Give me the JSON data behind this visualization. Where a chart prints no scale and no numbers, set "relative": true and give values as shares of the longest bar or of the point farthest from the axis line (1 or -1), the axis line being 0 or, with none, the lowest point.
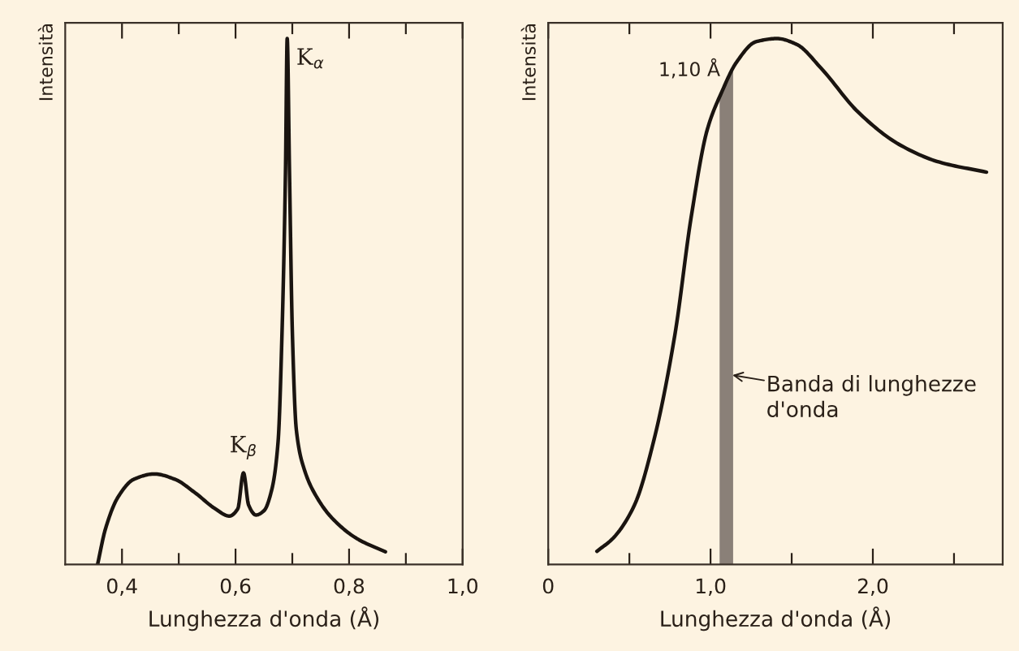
{
  "chart_data": [
    {
      "type": "line",
      "relative": true,
      "ylabel": "Intensità",
      "xlabel": "Lunghezza d'onda (Å)",
      "xlim": [
        0.3,
        1.0
      ],
      "xticks": [
        {
          "value": 0.4,
          "label": "0,4"
        },
        {
          "value": 0.5,
          "label": null
        },
        {
          "value": 0.6,
          "label": "0,6"
        },
        {
          "value": 0.7,
          "label": null
        },
        {
          "value": 0.8,
          "label": "0,8"
        },
        {
          "value": 0.9,
          "label": null
        },
        {
          "value": 1.0,
          "label": "1,0"
        }
      ],
      "tick_labels": "x",
      "grid": false,
      "legend": false,
      "marker": "none",
      "line_style": "solid",
      "series": [
        {
          "color": "#1a1410",
          "x": [
            0.357,
            0.371,
            0.393,
            0.421,
            0.457,
            0.493,
            0.529,
            0.564,
            0.589,
            0.604,
            0.614,
            0.623,
            0.636,
            0.65,
            0.664,
            0.675,
            0.682,
            0.688,
            0.691,
            0.695,
            0.7,
            0.707,
            0.721,
            0.743,
            0.771,
            0.814,
            0.864
          ],
          "values": [
            0,
            0.068,
            0.128,
            0.162,
            0.172,
            0.162,
            0.136,
            0.106,
            0.092,
            0.106,
            0.174,
            0.113,
            0.094,
            0.102,
            0.143,
            0.234,
            0.445,
            0.747,
            1.0,
            0.747,
            0.445,
            0.257,
            0.181,
            0.128,
            0.087,
            0.049,
            0.024
          ]
        }
      ],
      "annotations": [
        {
          "text": "K$_{α}$",
          "x": 0.691,
          "y": 1.0
        },
        {
          "text": "K$_{β}$",
          "x": 0.614,
          "y": 0.174
        }
      ]
    },
    {
      "type": "line",
      "relative": true,
      "ylabel": "Intensità",
      "xlabel": "Lunghezza d'onda (Å)",
      "xlim": [
        0,
        2.8
      ],
      "xticks": [
        {
          "value": 0,
          "label": "0"
        },
        {
          "value": 0.5,
          "label": null
        },
        {
          "value": 1.0,
          "label": "1,0"
        },
        {
          "value": 1.5,
          "label": null
        },
        {
          "value": 2.0,
          "label": "2,0"
        },
        {
          "value": 2.5,
          "label": null
        }
      ],
      "tick_labels": "x",
      "grid": false,
      "legend": false,
      "marker": "none",
      "line_style": "solid",
      "series": [
        {
          "color": "#1a1410",
          "x": [
            0.3,
            0.4,
            0.53,
            0.65,
            0.78,
            0.88,
            0.98,
            1.07,
            1.16,
            1.28,
            1.41,
            1.53,
            1.68,
            1.91,
            2.16,
            2.41,
            2.7
          ],
          "values": [
            0.025,
            0.05,
            0.112,
            0.235,
            0.436,
            0.659,
            0.827,
            0.899,
            0.955,
            0.994,
            1.0,
            0.989,
            0.944,
            0.86,
            0.799,
            0.765,
            0.746
          ]
        }
      ],
      "bands": [
        {
          "axis": "x",
          "from": 1.06,
          "to": 1.135,
          "label": "1,10 Å",
          "color": "#8a8078"
        }
      ],
      "annotations": [
        {
          "text": "Banda di lunghezze\nd'onda",
          "x": 1.135,
          "y": 0.36
        }
      ]
    }
  ]
}
